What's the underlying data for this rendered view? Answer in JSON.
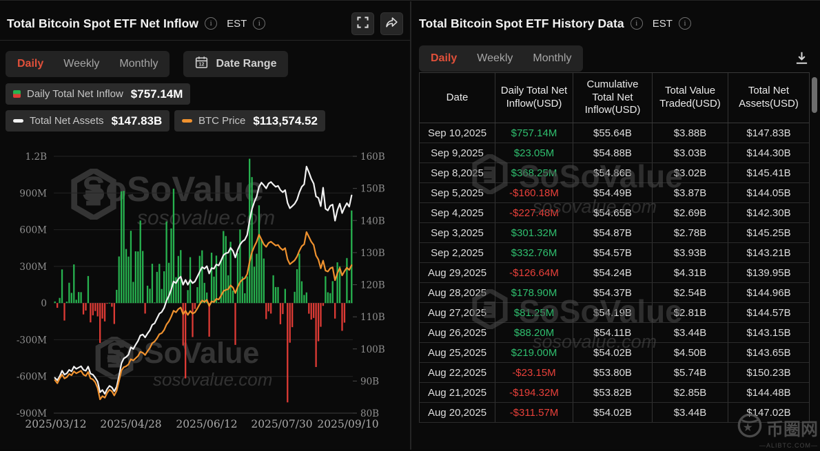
{
  "icons": {
    "info": "i",
    "calendar_day": "12"
  },
  "colors": {
    "accent_active_tab": "#e0503a",
    "bar_positive": "#27b24f",
    "bar_negative": "#de3b35",
    "line_net_assets": "#f2f2f2",
    "line_btc_price": "#f0922f",
    "table_positive": "#2fbe6e",
    "table_negative": "#e8403a",
    "panel_bg": "#0a0a0a"
  },
  "left_panel": {
    "title": "Total Bitcoin Spot ETF Net Inflow",
    "timezone": "EST",
    "tabs": [
      "Daily",
      "Weekly",
      "Monthly"
    ],
    "active_tab": "Daily",
    "date_range_label": "Date Range",
    "legend": {
      "inflow_label": "Daily Total Net Inflow",
      "inflow_value": "$757.14M",
      "assets_label": "Total Net Assets",
      "assets_value": "$147.83B",
      "btc_label": "BTC Price",
      "btc_value": "$113,574.52"
    }
  },
  "chart_data": {
    "type": "bar",
    "subtype": "bar+line dual-axis combo",
    "title": "Total Bitcoin Spot ETF Net Inflow",
    "date_range": "2025/03/12 - 2025/09/10",
    "n_points": 126,
    "x_ticks": [
      "2025/03/12",
      "2025/04/28",
      "2025/06/12",
      "2025/07/30",
      "2025/09/10"
    ],
    "left_axis": {
      "unit": "USD",
      "range_m": [
        -900,
        1200
      ],
      "ticks": [
        {
          "value": 1200,
          "label": "1.2B"
        },
        {
          "value": 900,
          "label": "900M"
        },
        {
          "value": 600,
          "label": "600M"
        },
        {
          "value": 300,
          "label": "300M"
        },
        {
          "value": 0,
          "label": "0"
        },
        {
          "value": -300,
          "label": "-300M"
        },
        {
          "value": -600,
          "label": "-600M"
        },
        {
          "value": -900,
          "label": "-900M"
        }
      ]
    },
    "right_axis": {
      "unit": "USD",
      "range_b": [
        80,
        160
      ],
      "ticks": [
        {
          "value": 160,
          "label": "160B"
        },
        {
          "value": 150,
          "label": "150B"
        },
        {
          "value": 140,
          "label": "140B"
        },
        {
          "value": 130,
          "label": "130B"
        },
        {
          "value": 120,
          "label": "120B"
        },
        {
          "value": 110,
          "label": "110B"
        },
        {
          "value": 100,
          "label": "100B"
        },
        {
          "value": 90,
          "label": "90B"
        },
        {
          "value": 80,
          "label": "80B"
        }
      ]
    },
    "series": [
      {
        "name": "Daily Total Net Inflow",
        "type": "bar",
        "axis": "left",
        "unit": "USD millions",
        "latest": 757.14,
        "values": [
          13,
          -39,
          42,
          275,
          -143,
          12,
          166,
          83,
          316,
          27,
          90,
          89,
          -93,
          -61,
          221,
          -158,
          -100,
          -65,
          -109,
          -326,
          -127,
          -150,
          -1,
          2,
          -30,
          -171,
          108,
          381,
          913,
          917,
          442,
          380,
          591,
          173,
          423,
          422,
          675,
          426,
          -86,
          142,
          117,
          321,
          5,
          255,
          320,
          115,
          260,
          667,
          329,
          610,
          935,
          211,
          385,
          433,
          -347,
          -616,
          106,
          375,
          -278,
          -48,
          130,
          386,
          431,
          165,
          86,
          -275,
          412,
          216,
          388,
          6,
          351,
          589,
          548,
          227,
          501,
          102,
          -342,
          408,
          602,
          217,
          80,
          218,
          1180,
          1030,
          297,
          403,
          799,
          523,
          364,
          -131,
          -68,
          -86,
          227,
          131,
          131,
          -173,
          -90,
          116,
          -812,
          -324,
          -197,
          92,
          277,
          404,
          178,
          66,
          87,
          -87,
          -135,
          -122,
          -523,
          -312,
          -194,
          -23,
          219,
          88,
          81,
          179,
          -127,
          333,
          301,
          -227,
          -160,
          368,
          23,
          757
        ]
      },
      {
        "name": "Total Net Assets",
        "type": "line",
        "axis": "right",
        "unit": "USD billions",
        "latest": 147.83,
        "values": [
          91.0,
          90.2,
          91.5,
          93.2,
          92.0,
          92.4,
          93.5,
          93.0,
          94.5,
          93.8,
          94.2,
          94.6,
          93.5,
          93.2,
          94.5,
          92.3,
          92.0,
          91.0,
          89.8,
          86.5,
          87.2,
          86.0,
          87.5,
          88.5,
          88.0,
          86.8,
          88.2,
          91.5,
          95.5,
          97.0,
          97.5,
          98.2,
          100.5,
          100.0,
          101.3,
          102.5,
          104.2,
          104.5,
          103.6,
          104.8,
          105.8,
          107.5,
          108.0,
          109.5,
          111.0,
          111.5,
          112.8,
          115.0,
          116.5,
          118.5,
          121.0,
          120.5,
          121.8,
          122.5,
          120.0,
          121.5,
          120.0,
          121.5,
          120.5,
          121.0,
          122.5,
          124.0,
          125.5,
          125.0,
          125.8,
          123.5,
          125.2,
          125.0,
          126.3,
          126.0,
          127.5,
          129.2,
          129.8,
          130.0,
          131.5,
          130.5,
          128.5,
          130.8,
          132.5,
          133.5,
          134.0,
          135.5,
          140.0,
          143.5,
          145.8,
          147.5,
          150.5,
          151.8,
          151.0,
          150.0,
          151.5,
          152.0,
          151.2,
          150.5,
          150.8,
          149.5,
          148.8,
          149.5,
          145.5,
          143.8,
          144.5,
          145.2,
          146.5,
          148.8,
          150.5,
          151.3,
          156.8,
          155.0,
          153.0,
          151.5,
          147.5,
          147.02,
          144.48,
          150.23,
          143.65,
          143.15,
          144.57,
          144.96,
          139.95,
          143.21,
          145.25,
          142.3,
          144.05,
          145.41,
          144.3,
          147.83
        ]
      },
      {
        "name": "BTC Price",
        "type": "line",
        "axis": "right-mapped",
        "unit": "plotted on right axis scale (actual latest $113,574.52)",
        "latest": 113574.52,
        "values": [
          90.3,
          89.3,
          90.8,
          92.0,
          90.8,
          91.2,
          92.2,
          91.8,
          93.0,
          92.4,
          92.8,
          93.2,
          92.0,
          91.6,
          92.8,
          90.8,
          90.5,
          89.6,
          87.8,
          84.3,
          85.3,
          84.8,
          86.3,
          87.3,
          86.8,
          85.5,
          87.0,
          90.0,
          93.3,
          94.3,
          94.6,
          95.2,
          96.8,
          96.4,
          97.1,
          97.8,
          99.1,
          98.8,
          98.1,
          99.3,
          100.3,
          101.8,
          102.3,
          103.3,
          104.6,
          104.9,
          105.9,
          107.6,
          108.6,
          110.1,
          111.9,
          111.4,
          112.4,
          112.9,
          110.8,
          111.9,
          110.6,
          111.8,
          111.0,
          111.4,
          112.6,
          113.9,
          115.1,
          114.6,
          115.3,
          113.4,
          114.8,
          114.6,
          115.6,
          115.4,
          116.6,
          118.0,
          118.4,
          118.6,
          119.8,
          119.1,
          117.4,
          119.3,
          120.8,
          121.6,
          122.0,
          123.3,
          127.1,
          130.1,
          131.9,
          133.4,
          135.6,
          134.1,
          132.6,
          131.8,
          133.0,
          133.4,
          132.8,
          132.2,
          132.4,
          131.4,
          130.8,
          131.4,
          127.9,
          126.4,
          127.0,
          127.6,
          128.8,
          130.6,
          132.0,
          132.6,
          136.4,
          134.9,
          133.4,
          132.4,
          129.1,
          127.8,
          125.1,
          127.5,
          124.4,
          124.1,
          125.1,
          125.4,
          121.4,
          123.6,
          125.2,
          122.9,
          124.2,
          125.3,
          124.6,
          126.1
        ]
      }
    ],
    "grid": true,
    "legend_position": "top-left"
  },
  "right_panel": {
    "title": "Total Bitcoin Spot ETF History Data",
    "timezone": "EST",
    "tabs": [
      "Daily",
      "Weekly",
      "Monthly"
    ],
    "active_tab": "Daily",
    "table": {
      "columns": [
        "Date",
        "Daily Total Net Inflow(USD)",
        "Cumulative Total Net Inflow(USD)",
        "Total Value Traded(USD)",
        "Total Net Assets(USD)"
      ],
      "rows": [
        {
          "date": "Sep 10,2025",
          "inflow": "$757.14M",
          "sign": "pos",
          "cumulative": "$55.64B",
          "traded": "$3.88B",
          "assets": "$147.83B"
        },
        {
          "date": "Sep 9,2025",
          "inflow": "$23.05M",
          "sign": "pos",
          "cumulative": "$54.88B",
          "traded": "$3.03B",
          "assets": "$144.30B"
        },
        {
          "date": "Sep 8,2025",
          "inflow": "$368.25M",
          "sign": "pos",
          "cumulative": "$54.86B",
          "traded": "$3.02B",
          "assets": "$145.41B"
        },
        {
          "date": "Sep 5,2025",
          "inflow": "-$160.18M",
          "sign": "neg",
          "cumulative": "$54.49B",
          "traded": "$3.87B",
          "assets": "$144.05B"
        },
        {
          "date": "Sep 4,2025",
          "inflow": "-$227.48M",
          "sign": "neg",
          "cumulative": "$54.65B",
          "traded": "$2.69B",
          "assets": "$142.30B"
        },
        {
          "date": "Sep 3,2025",
          "inflow": "$301.32M",
          "sign": "pos",
          "cumulative": "$54.87B",
          "traded": "$2.78B",
          "assets": "$145.25B"
        },
        {
          "date": "Sep 2,2025",
          "inflow": "$332.76M",
          "sign": "pos",
          "cumulative": "$54.57B",
          "traded": "$3.93B",
          "assets": "$143.21B"
        },
        {
          "date": "Aug 29,2025",
          "inflow": "-$126.64M",
          "sign": "neg",
          "cumulative": "$54.24B",
          "traded": "$4.31B",
          "assets": "$139.95B"
        },
        {
          "date": "Aug 28,2025",
          "inflow": "$178.90M",
          "sign": "pos",
          "cumulative": "$54.37B",
          "traded": "$2.54B",
          "assets": "$144.96B"
        },
        {
          "date": "Aug 27,2025",
          "inflow": "$81.25M",
          "sign": "pos",
          "cumulative": "$54.19B",
          "traded": "$2.81B",
          "assets": "$144.57B"
        },
        {
          "date": "Aug 26,2025",
          "inflow": "$88.20M",
          "sign": "pos",
          "cumulative": "$54.11B",
          "traded": "$3.44B",
          "assets": "$143.15B"
        },
        {
          "date": "Aug 25,2025",
          "inflow": "$219.00M",
          "sign": "pos",
          "cumulative": "$54.02B",
          "traded": "$4.50B",
          "assets": "$143.65B"
        },
        {
          "date": "Aug 22,2025",
          "inflow": "-$23.15M",
          "sign": "neg",
          "cumulative": "$53.80B",
          "traded": "$5.74B",
          "assets": "$150.23B"
        },
        {
          "date": "Aug 21,2025",
          "inflow": "-$194.32M",
          "sign": "neg",
          "cumulative": "$53.82B",
          "traded": "$2.85B",
          "assets": "$144.48B"
        },
        {
          "date": "Aug 20,2025",
          "inflow": "-$311.57M",
          "sign": "neg",
          "cumulative": "$54.02B",
          "traded": "$3.44B",
          "assets": "$147.02B"
        }
      ]
    }
  },
  "watermark": {
    "brand": "SoSoValue",
    "domain": "sosovalue.com"
  },
  "corner_watermark": {
    "text": "币圈网",
    "subtext": "—ALIBTC.COM—"
  }
}
